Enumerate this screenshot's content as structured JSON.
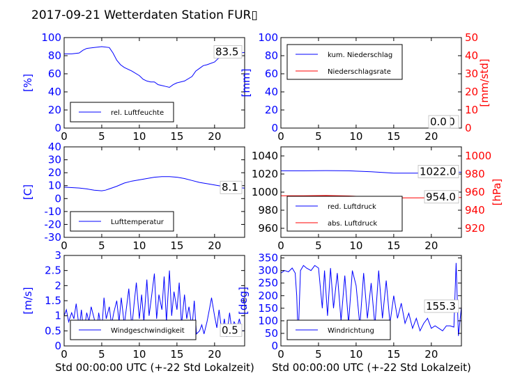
{
  "title": "2017-09-21 Wetterdaten Station FUR▯",
  "xlabel": "Std 00:00:00 UTC (+-22 Std Lokalzeit)",
  "colors": {
    "primary": "#0000ff",
    "secondary": "#ff0000",
    "axis": "#000000"
  },
  "chart_data": [
    {
      "type": "line",
      "panel": "humidity",
      "xlim": [
        0,
        24
      ],
      "ylim": [
        0,
        100
      ],
      "ylabel": "[%]",
      "xticks": [
        0,
        5,
        10,
        15,
        20
      ],
      "yticks": [
        0,
        20,
        40,
        60,
        80,
        100
      ],
      "legend": {
        "placement": "lower-left",
        "entries": [
          "rel. Luftfeuchte"
        ]
      },
      "annotation": "83.5",
      "series": [
        {
          "name": "rel. Luftfeuchte",
          "color": "#0000ff",
          "x": [
            0,
            1,
            2,
            2.5,
            3,
            4,
            5,
            6,
            6.5,
            7,
            7.5,
            8,
            9,
            10,
            10.5,
            11,
            11.5,
            12,
            12.5,
            13,
            13.5,
            14,
            14.5,
            15,
            16,
            17,
            17.5,
            18,
            18.5,
            19,
            20,
            20.5,
            21,
            22,
            23,
            24
          ],
          "y": [
            82,
            82,
            83,
            86,
            88,
            89,
            90,
            89,
            83,
            75,
            70,
            67,
            63,
            58,
            54,
            52,
            51,
            51,
            48,
            47,
            46,
            45,
            48,
            50,
            52,
            57,
            63,
            66,
            69,
            70,
            73,
            77,
            79,
            82,
            83,
            83.5
          ]
        }
      ]
    },
    {
      "type": "line",
      "panel": "precipitation",
      "xlim": [
        0,
        24
      ],
      "ylim": [
        0,
        100
      ],
      "ylabel": "[mm]",
      "y2lim": [
        0,
        50
      ],
      "y2label": "[mm/std]",
      "xticks": [
        0,
        5,
        10,
        15,
        20
      ],
      "yticks": [
        0,
        20,
        40,
        60,
        80,
        100
      ],
      "y2ticks": [
        0,
        10,
        20,
        30,
        40,
        50
      ],
      "legend": {
        "placement": "upper-left",
        "entries": [
          "kum. Niederschlag",
          "Niederschlagsrate"
        ]
      },
      "annotations": [
        "0.0",
        "0.0"
      ],
      "series": [
        {
          "name": "kum. Niederschlag",
          "color": "#0000ff",
          "axis": "left",
          "x": [
            0,
            24
          ],
          "y": [
            0,
            0
          ]
        },
        {
          "name": "Niederschlagsrate",
          "color": "#ff0000",
          "axis": "right",
          "x": [
            0,
            24
          ],
          "y": [
            0,
            0
          ]
        }
      ]
    },
    {
      "type": "line",
      "panel": "temperature",
      "xlim": [
        0,
        24
      ],
      "ylim": [
        -30,
        40
      ],
      "ylabel": "[C]",
      "xticks": [
        0,
        5,
        10,
        15,
        20
      ],
      "yticks": [
        -30,
        -20,
        -10,
        0,
        10,
        20,
        30,
        40
      ],
      "legend": {
        "placement": "lower-left",
        "entries": [
          "Lufttemperatur"
        ]
      },
      "annotation": "8.1",
      "series": [
        {
          "name": "Lufttemperatur",
          "color": "#0000ff",
          "x": [
            0,
            1,
            2,
            3,
            4,
            5,
            5.5,
            6,
            7,
            8,
            9,
            10,
            11,
            12,
            13,
            14,
            15,
            16,
            17,
            18,
            19,
            20,
            21,
            22,
            23,
            24
          ],
          "y": [
            8.8,
            8.5,
            8.2,
            7.5,
            6.5,
            6,
            6.5,
            7.5,
            9.5,
            12,
            13.5,
            14.5,
            15.5,
            16.5,
            17,
            17,
            16.5,
            15.5,
            14,
            12.5,
            11.5,
            10.5,
            9.5,
            9,
            8.5,
            8.1
          ]
        }
      ]
    },
    {
      "type": "line",
      "panel": "pressure",
      "xlim": [
        0,
        24
      ],
      "ylim": [
        950,
        1050
      ],
      "ylabel": "",
      "y2lim": [
        910,
        1010
      ],
      "y2label": "[hPa]",
      "xticks": [
        0,
        5,
        10,
        15,
        20
      ],
      "yticks": [
        960,
        980,
        1000,
        1020,
        1040
      ],
      "y2ticks": [
        920,
        940,
        960,
        980,
        1000
      ],
      "legend": {
        "placement": "lower-left",
        "entries": [
          "red. Luftdruck",
          "abs. Luftdruck"
        ]
      },
      "annotations": [
        "1022.0",
        "954.0"
      ],
      "series": [
        {
          "name": "red. Luftdruck",
          "color": "#0000ff",
          "axis": "left",
          "x": [
            0,
            3,
            6,
            9,
            12,
            15,
            18,
            21,
            24
          ],
          "y": [
            1023.5,
            1023.5,
            1023.8,
            1023.5,
            1022.5,
            1021,
            1021,
            1021.8,
            1022
          ]
        },
        {
          "name": "abs. Luftdruck",
          "color": "#ff0000",
          "axis": "right",
          "x": [
            0,
            3,
            6,
            9,
            12,
            15,
            18,
            21,
            24
          ],
          "y": [
            956,
            956,
            956.2,
            955.8,
            954.8,
            953.7,
            953.6,
            953.8,
            954
          ]
        }
      ]
    },
    {
      "type": "line",
      "panel": "windspeed",
      "xlim": [
        0,
        24
      ],
      "ylim": [
        0,
        3
      ],
      "ylabel": "[m/s]",
      "xticks": [
        0,
        5,
        10,
        15,
        20
      ],
      "yticks": [
        0,
        0.5,
        1,
        1.5,
        2,
        2.5,
        3
      ],
      "legend": {
        "placement": "lower-center",
        "entries": [
          "Windgeschwindigkeit"
        ]
      },
      "annotation": "0.5",
      "series": [
        {
          "name": "Windgeschwindigkeit",
          "color": "#0000ff",
          "x": [
            0,
            0.3,
            0.6,
            1,
            1.3,
            1.6,
            2,
            2.3,
            2.6,
            3,
            3.3,
            3.6,
            4,
            4.3,
            4.6,
            5,
            5.3,
            5.6,
            6,
            6.3,
            6.6,
            7,
            7.3,
            7.6,
            8,
            8.3,
            8.6,
            9,
            9.3,
            9.6,
            10,
            10.3,
            10.6,
            11,
            11.3,
            11.6,
            12,
            12.3,
            12.6,
            13,
            13.3,
            13.6,
            14,
            14.3,
            14.6,
            15,
            15.3,
            15.6,
            16,
            16.3,
            16.6,
            17,
            17.3,
            17.6,
            18,
            18.3,
            18.6,
            19,
            19.3,
            19.6,
            20,
            20.3,
            20.6,
            21,
            21.3,
            21.6,
            22,
            22.3,
            22.6,
            23,
            23.3,
            23.6,
            24
          ],
          "y": [
            1.0,
            1.2,
            0.8,
            1.1,
            0.9,
            1.4,
            0.6,
            1.2,
            0.4,
            1.1,
            0.8,
            1.3,
            0.9,
            0.3,
            1.1,
            0.5,
            1.6,
            0.9,
            1.3,
            0.7,
            1.1,
            1.5,
            0.8,
            1.6,
            0.7,
            1.3,
            1.9,
            0.6,
            1.4,
            2.1,
            0.9,
            1.7,
            0.8,
            2.2,
            1.0,
            1.6,
            2.4,
            0.9,
            1.7,
            1.2,
            2.3,
            0.8,
            2.5,
            1.0,
            1.8,
            1.2,
            2.1,
            0.7,
            1.7,
            0.9,
            1.3,
            0.6,
            1.5,
            0.4,
            0.5,
            0.7,
            0.4,
            0.8,
            1.2,
            1.6,
            1.0,
            0.6,
            1.2,
            0.4,
            0.9,
            0.3,
            1.1,
            0.5,
            0.8,
            0.6,
            0.9,
            0.5,
            0.5
          ]
        }
      ]
    },
    {
      "type": "line",
      "panel": "winddirection",
      "xlim": [
        0,
        24
      ],
      "ylim": [
        0,
        360
      ],
      "ylabel": "[deg]",
      "xticks": [
        0,
        5,
        10,
        15,
        20
      ],
      "yticks": [
        0,
        50,
        100,
        150,
        200,
        250,
        300,
        350
      ],
      "legend": {
        "placement": "lower-left",
        "entries": [
          "Windrichtung"
        ]
      },
      "annotation": "155.3",
      "series": [
        {
          "name": "Windrichtung",
          "color": "#0000ff",
          "x": [
            0,
            0.5,
            1,
            1.5,
            1.9,
            2.1,
            2.3,
            2.6,
            3,
            3.4,
            4,
            4.5,
            5,
            5.5,
            5.8,
            6.2,
            6.6,
            7,
            7.5,
            8,
            8.5,
            9,
            9.5,
            10,
            10.5,
            11,
            11.5,
            12,
            12.5,
            13,
            13.5,
            14,
            14.5,
            15,
            15.5,
            16,
            16.5,
            17,
            17.5,
            18,
            18.5,
            19,
            19.5,
            20,
            20.5,
            21,
            21.5,
            22,
            22.5,
            23,
            23.3,
            23.6,
            24
          ],
          "y": [
            290,
            300,
            295,
            310,
            290,
            200,
            30,
            300,
            320,
            310,
            300,
            320,
            310,
            150,
            300,
            120,
            310,
            150,
            290,
            100,
            280,
            90,
            300,
            240,
            80,
            290,
            110,
            250,
            80,
            300,
            110,
            260,
            90,
            200,
            110,
            170,
            90,
            130,
            70,
            110,
            60,
            90,
            110,
            70,
            80,
            70,
            60,
            80,
            80,
            75,
            330,
            40,
            155.3
          ]
        }
      ]
    }
  ]
}
